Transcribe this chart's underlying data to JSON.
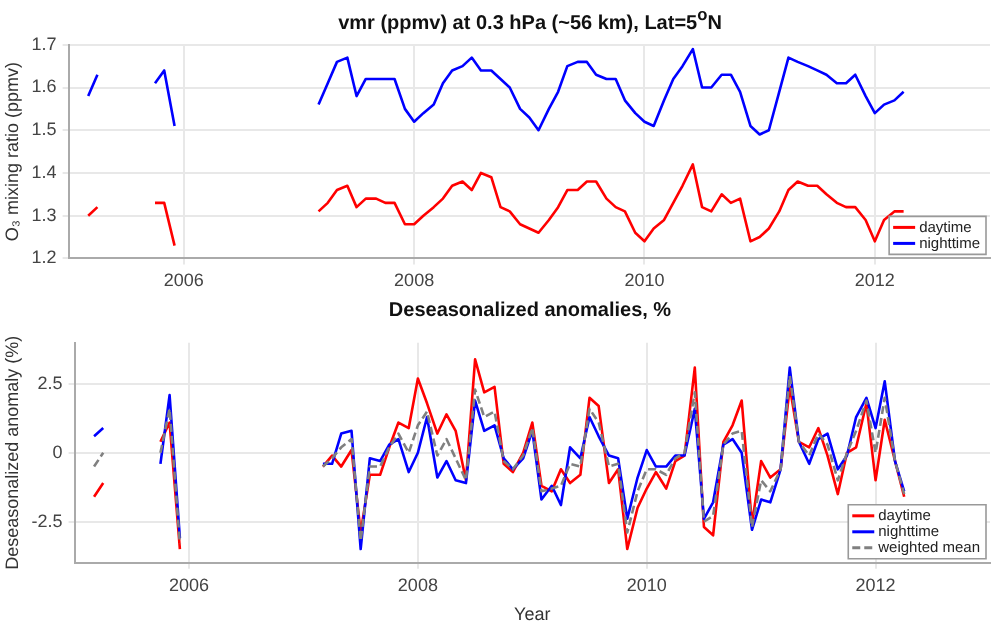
{
  "chart_data": [
    {
      "type": "line",
      "title": "vmr (ppmv) at 0.3 hPa (~56 km),  Lat=5$^{o}$N",
      "ylabel": "O₃ mixing ratio (ppmv)",
      "x": [
        2005.17,
        2005.25,
        2005.5,
        2005.75,
        2005.83,
        2005.92,
        2006.5,
        2007.17,
        2007.25,
        2007.33,
        2007.42,
        2007.5,
        2007.58,
        2007.67,
        2007.75,
        2007.83,
        2007.92,
        2008.0,
        2008.08,
        2008.17,
        2008.25,
        2008.33,
        2008.42,
        2008.5,
        2008.58,
        2008.67,
        2008.75,
        2008.83,
        2008.92,
        2009.0,
        2009.08,
        2009.17,
        2009.25,
        2009.33,
        2009.42,
        2009.5,
        2009.58,
        2009.67,
        2009.75,
        2009.83,
        2009.92,
        2010.0,
        2010.08,
        2010.17,
        2010.25,
        2010.33,
        2010.42,
        2010.5,
        2010.58,
        2010.67,
        2010.75,
        2010.83,
        2010.92,
        2011.0,
        2011.08,
        2011.17,
        2011.25,
        2011.33,
        2011.42,
        2011.5,
        2011.58,
        2011.67,
        2011.75,
        2011.83,
        2011.92,
        2012.0,
        2012.08,
        2012.17,
        2012.25
      ],
      "series": [
        {
          "name": "daytime",
          "color": "#ff0000",
          "values": [
            1.3,
            1.32,
            null,
            1.33,
            1.33,
            1.23,
            null,
            1.31,
            1.33,
            1.36,
            1.37,
            1.32,
            1.34,
            1.34,
            1.33,
            1.33,
            1.28,
            1.28,
            1.3,
            1.32,
            1.34,
            1.37,
            1.38,
            1.36,
            1.4,
            1.39,
            1.32,
            1.31,
            1.28,
            1.27,
            1.26,
            1.29,
            1.32,
            1.36,
            1.36,
            1.38,
            1.38,
            1.34,
            1.32,
            1.31,
            1.26,
            1.24,
            1.27,
            1.29,
            1.33,
            1.37,
            1.42,
            1.32,
            1.31,
            1.35,
            1.33,
            1.34,
            1.24,
            1.25,
            1.27,
            1.31,
            1.36,
            1.38,
            1.37,
            1.37,
            1.35,
            1.33,
            1.32,
            1.32,
            1.29,
            1.24,
            1.29,
            1.31,
            1.31
          ]
        },
        {
          "name": "nighttime",
          "color": "#0000ff",
          "values": [
            1.58,
            1.63,
            null,
            1.61,
            1.64,
            1.51,
            null,
            1.56,
            1.61,
            1.66,
            1.67,
            1.58,
            1.62,
            1.62,
            1.62,
            1.62,
            1.55,
            1.52,
            1.54,
            1.56,
            1.61,
            1.64,
            1.65,
            1.67,
            1.64,
            1.64,
            1.62,
            1.6,
            1.55,
            1.53,
            1.5,
            1.55,
            1.59,
            1.65,
            1.66,
            1.66,
            1.63,
            1.62,
            1.62,
            1.57,
            1.54,
            1.52,
            1.51,
            1.57,
            1.62,
            1.65,
            1.69,
            1.6,
            1.6,
            1.63,
            1.63,
            1.59,
            1.51,
            1.49,
            1.5,
            1.59,
            1.67,
            1.66,
            1.65,
            1.64,
            1.63,
            1.61,
            1.61,
            1.63,
            1.58,
            1.54,
            1.56,
            1.57,
            1.59
          ]
        }
      ],
      "xlim": [
        2005,
        2013
      ],
      "xticks": [
        2006,
        2008,
        2010,
        2012
      ],
      "ylim": [
        1.2,
        1.7
      ],
      "yticks": [
        1.2,
        1.3,
        1.4,
        1.5,
        1.6,
        1.7
      ],
      "grid": true,
      "legend": "bottom right"
    },
    {
      "type": "line",
      "title": "Deseasonalized anomalies, %",
      "xlabel": "Year",
      "ylabel": "Deseasonalized anomaly (%)",
      "x": [
        2005.17,
        2005.25,
        2005.5,
        2005.75,
        2005.83,
        2005.92,
        2006.5,
        2007.17,
        2007.25,
        2007.33,
        2007.42,
        2007.5,
        2007.58,
        2007.67,
        2007.75,
        2007.83,
        2007.92,
        2008.0,
        2008.08,
        2008.17,
        2008.25,
        2008.33,
        2008.42,
        2008.5,
        2008.58,
        2008.67,
        2008.75,
        2008.83,
        2008.92,
        2009.0,
        2009.08,
        2009.17,
        2009.25,
        2009.33,
        2009.42,
        2009.5,
        2009.58,
        2009.67,
        2009.75,
        2009.83,
        2009.92,
        2010.0,
        2010.08,
        2010.17,
        2010.25,
        2010.33,
        2010.42,
        2010.5,
        2010.58,
        2010.67,
        2010.75,
        2010.83,
        2010.92,
        2011.0,
        2011.08,
        2011.17,
        2011.25,
        2011.33,
        2011.42,
        2011.5,
        2011.58,
        2011.67,
        2011.75,
        2011.83,
        2011.92,
        2012.0,
        2012.08,
        2012.17,
        2012.25
      ],
      "series": [
        {
          "name": "daytime",
          "color": "#ff0000",
          "values": [
            -1.6,
            -1.1,
            null,
            0.4,
            1.1,
            -3.5,
            null,
            -0.5,
            -0.1,
            -0.5,
            0.1,
            -2.9,
            -0.8,
            -0.8,
            0.2,
            1.1,
            0.9,
            2.7,
            1.8,
            0.7,
            1.4,
            0.8,
            -1.0,
            3.4,
            2.2,
            2.4,
            -0.4,
            -0.7,
            0.0,
            1.1,
            -1.2,
            -1.4,
            -0.6,
            -1.1,
            -0.8,
            2.0,
            1.7,
            -1.1,
            -0.6,
            -3.5,
            -2.0,
            -1.3,
            -0.7,
            -1.3,
            -0.3,
            -0.1,
            3.1,
            -2.7,
            -3.0,
            0.4,
            1.0,
            1.9,
            -2.6,
            -0.3,
            -0.9,
            -0.6,
            2.4,
            0.4,
            0.2,
            0.9,
            -0.1,
            -1.5,
            0.0,
            0.2,
            1.8,
            -1.0,
            1.2,
            -0.3,
            -1.6
          ]
        },
        {
          "name": "nighttime",
          "color": "#0000ff",
          "values": [
            0.6,
            0.9,
            null,
            -0.4,
            2.1,
            -3.1,
            null,
            -0.4,
            -0.4,
            0.7,
            0.8,
            -3.5,
            -0.2,
            -0.3,
            0.3,
            0.5,
            -0.7,
            0.0,
            1.3,
            -0.9,
            -0.3,
            -1.0,
            -1.1,
            1.9,
            0.8,
            1.0,
            -0.2,
            -0.6,
            -0.2,
            0.8,
            -1.7,
            -1.2,
            -1.9,
            0.2,
            -0.2,
            1.3,
            0.6,
            -0.1,
            -0.2,
            -2.4,
            -0.9,
            0.1,
            -0.5,
            -0.5,
            -0.1,
            -0.1,
            1.6,
            -2.4,
            -1.8,
            0.3,
            0.5,
            0.0,
            -2.8,
            -1.7,
            -1.8,
            -0.6,
            3.1,
            0.4,
            -0.4,
            0.5,
            0.7,
            -0.6,
            -0.1,
            1.3,
            2.0,
            0.9,
            2.6,
            -0.3,
            -1.4
          ]
        },
        {
          "name": "weighted mean",
          "color": "#808080",
          "line_style": "dashed",
          "values": [
            -0.5,
            0.0,
            null,
            0.0,
            1.6,
            -3.3,
            null,
            -0.5,
            -0.2,
            0.2,
            0.5,
            -3.2,
            -0.5,
            -0.5,
            0.2,
            0.7,
            0.0,
            1.0,
            1.5,
            -0.1,
            0.5,
            -0.2,
            -1.0,
            2.3,
            1.3,
            1.5,
            -0.3,
            -0.6,
            -0.1,
            0.9,
            -1.4,
            -1.3,
            -1.2,
            -0.4,
            -0.5,
            1.6,
            1.1,
            -0.5,
            -0.4,
            -2.9,
            -1.4,
            -0.6,
            -0.6,
            -0.8,
            -0.2,
            0.0,
            2.2,
            -2.5,
            -2.3,
            0.3,
            0.7,
            0.8,
            -2.7,
            -1.0,
            -1.4,
            -0.6,
            2.8,
            0.4,
            -0.1,
            0.7,
            0.3,
            -1.0,
            0.0,
            0.8,
            1.9,
            0.0,
            2.0,
            -0.3,
            -1.5
          ]
        }
      ],
      "xlim": [
        2005,
        2013
      ],
      "xticks": [
        2006,
        2008,
        2010,
        2012
      ],
      "ylim": [
        -4,
        4
      ],
      "yticks": [
        -2.5,
        0,
        2.5
      ],
      "grid": true,
      "legend": "bottom right"
    }
  ]
}
